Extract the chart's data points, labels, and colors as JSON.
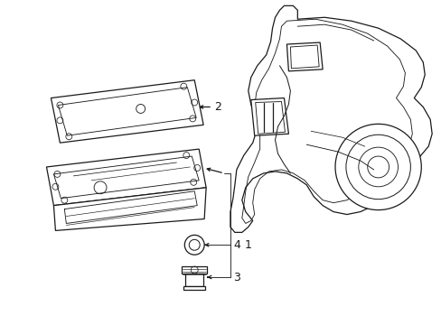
{
  "background_color": "#ffffff",
  "line_color": "#1a1a1a",
  "line_width": 0.9,
  "label_fontsize": 9,
  "fig_width": 4.89,
  "fig_height": 3.6,
  "dpi": 100
}
